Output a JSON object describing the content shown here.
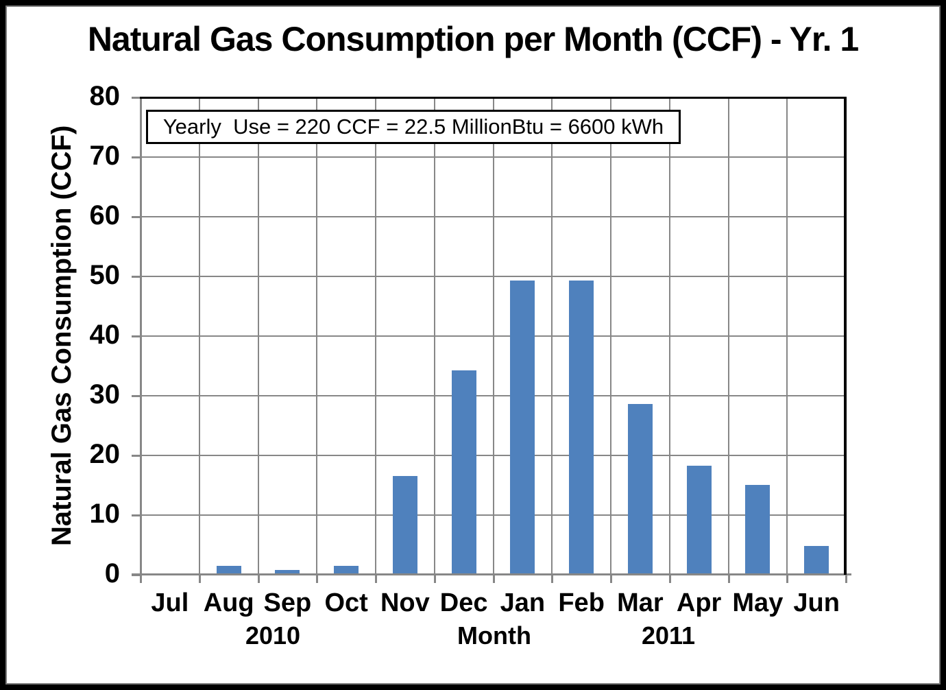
{
  "chart_data": {
    "type": "bar",
    "title": "Natural Gas Consumption per Month (CCF) - Yr. 1",
    "categories": [
      "Jul",
      "Aug",
      "Sep",
      "Oct",
      "Nov",
      "Dec",
      "Jan",
      "Feb",
      "Mar",
      "Apr",
      "May",
      "Jun"
    ],
    "values": [
      0,
      1.5,
      0.8,
      1.5,
      16.6,
      34.2,
      49.3,
      49.3,
      28.6,
      18.3,
      15.1,
      4.8
    ],
    "xlabel": "Month",
    "ylabel": "Natural Gas Consumption (CCF)",
    "ylim": [
      0,
      80
    ],
    "yticks": [
      0,
      10,
      20,
      30,
      40,
      50,
      60,
      70,
      80
    ],
    "x_year_labels": {
      "left": "2010",
      "right": "2011"
    },
    "grid": true,
    "legend": "none",
    "bar_color": "#4F81BD",
    "gridline_color": "#878787",
    "annotation": "Yearly  Use = 220 CCF = 22.5 MillionBtu = 6600 kWh"
  }
}
